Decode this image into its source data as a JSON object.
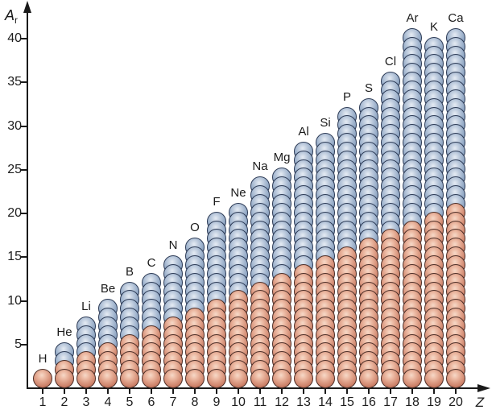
{
  "chart_data": {
    "type": "bar",
    "subtype": "stacked-ball-columns",
    "title": "",
    "x_axis": {
      "label": "Z",
      "ticks": [
        1,
        2,
        3,
        4,
        5,
        6,
        7,
        8,
        9,
        10,
        11,
        12,
        13,
        14,
        15,
        16,
        17,
        18,
        19,
        20
      ]
    },
    "y_axis": {
      "label": "A",
      "label_sub": "r",
      "ticks": [
        5,
        10,
        15,
        20,
        25,
        30,
        35,
        40
      ]
    },
    "xlim": [
      0,
      21
    ],
    "ylim": [
      0,
      43
    ],
    "grid": false,
    "legend": "none",
    "colors": {
      "red_ball": "#d99580",
      "blue_ball": "#93aac9",
      "axis": "#1a1a1a",
      "background": "#ffffff"
    },
    "elements": [
      {
        "symbol": "H",
        "z": 1,
        "red_balls": 1,
        "blue_balls": 0,
        "total": 1
      },
      {
        "symbol": "He",
        "z": 2,
        "red_balls": 2,
        "blue_balls": 2,
        "total": 4
      },
      {
        "symbol": "Li",
        "z": 3,
        "red_balls": 3,
        "blue_balls": 4,
        "total": 7
      },
      {
        "symbol": "Be",
        "z": 4,
        "red_balls": 4,
        "blue_balls": 5,
        "total": 9
      },
      {
        "symbol": "B",
        "z": 5,
        "red_balls": 5,
        "blue_balls": 6,
        "total": 11
      },
      {
        "symbol": "C",
        "z": 6,
        "red_balls": 6,
        "blue_balls": 6,
        "total": 12
      },
      {
        "symbol": "N",
        "z": 7,
        "red_balls": 7,
        "blue_balls": 7,
        "total": 14
      },
      {
        "symbol": "O",
        "z": 8,
        "red_balls": 8,
        "blue_balls": 8,
        "total": 16
      },
      {
        "symbol": "F",
        "z": 9,
        "red_balls": 9,
        "blue_balls": 10,
        "total": 19
      },
      {
        "symbol": "Ne",
        "z": 10,
        "red_balls": 10,
        "blue_balls": 10,
        "total": 20
      },
      {
        "symbol": "Na",
        "z": 11,
        "red_balls": 11,
        "blue_balls": 12,
        "total": 23
      },
      {
        "symbol": "Mg",
        "z": 12,
        "red_balls": 12,
        "blue_balls": 12,
        "total": 24
      },
      {
        "symbol": "Al",
        "z": 13,
        "red_balls": 13,
        "blue_balls": 14,
        "total": 27
      },
      {
        "symbol": "Si",
        "z": 14,
        "red_balls": 14,
        "blue_balls": 14,
        "total": 28
      },
      {
        "symbol": "P",
        "z": 15,
        "red_balls": 15,
        "blue_balls": 16,
        "total": 31
      },
      {
        "symbol": "S",
        "z": 16,
        "red_balls": 16,
        "blue_balls": 16,
        "total": 32
      },
      {
        "symbol": "Cl",
        "z": 17,
        "red_balls": 17,
        "blue_balls": 18,
        "total": 35
      },
      {
        "symbol": "Ar",
        "z": 18,
        "red_balls": 18,
        "blue_balls": 22,
        "total": 40
      },
      {
        "symbol": "K",
        "z": 19,
        "red_balls": 19,
        "blue_balls": 20,
        "total": 39
      },
      {
        "symbol": "Ca",
        "z": 20,
        "red_balls": 20,
        "blue_balls": 20,
        "total": 40
      }
    ]
  }
}
